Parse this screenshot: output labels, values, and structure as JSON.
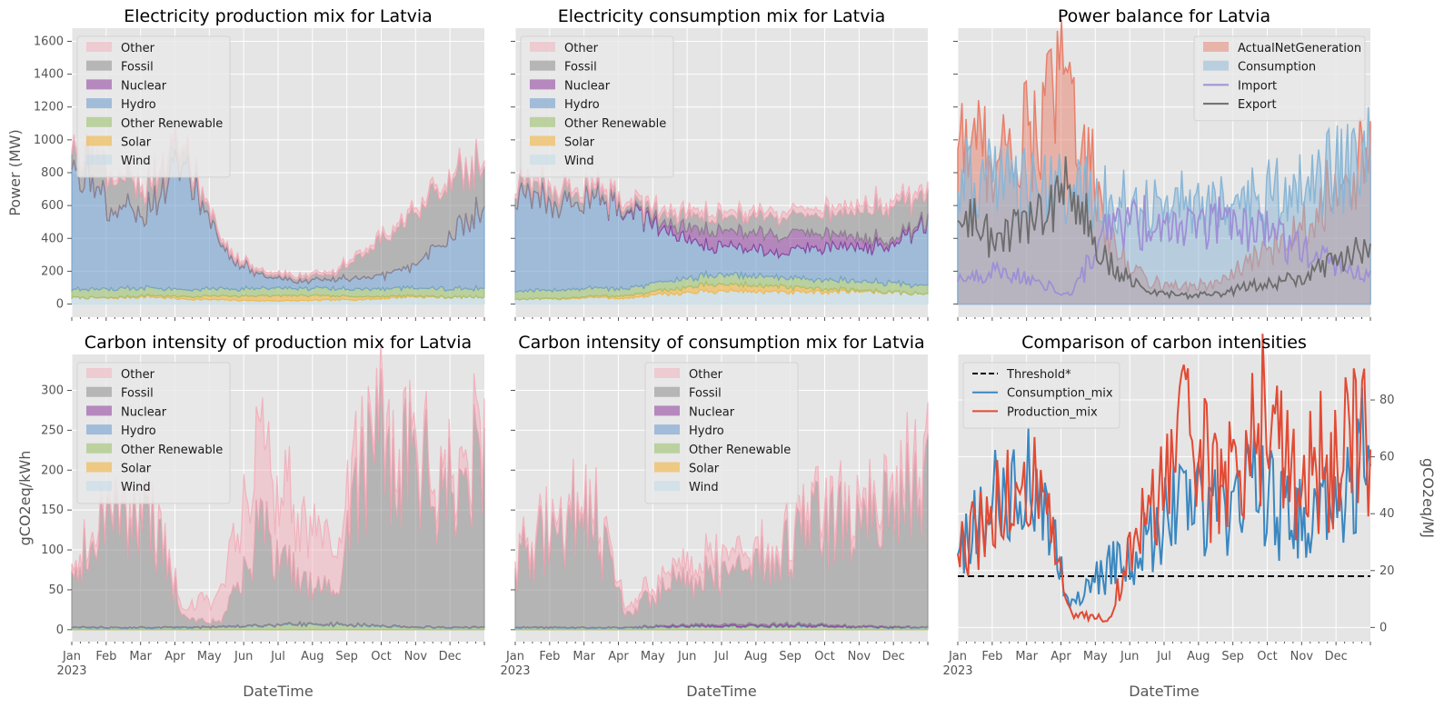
{
  "colors": {
    "Other": "#f4a9b5",
    "Fossil": "#8c8c8c",
    "Nuclear": "#8b3a9a",
    "Hydro": "#6f9fce",
    "Other Renewable": "#9dc26e",
    "Solar": "#f2b440",
    "Wind": "#c5dce8",
    "ActualNetGeneration": "#e8806c",
    "Consumption": "#8ab6d6",
    "Import": "#9f8fd6",
    "Export": "#6d6d6d",
    "Threshold*": "#000000",
    "Consumption_mix": "#3a87c0",
    "Production_mix": "#e24a33"
  },
  "xaxis": {
    "months": [
      "Jan",
      "Feb",
      "Mar",
      "Apr",
      "May",
      "Jun",
      "Jul",
      "Aug",
      "Sep",
      "Oct",
      "Nov",
      "Dec"
    ],
    "year": "2023",
    "label": "DateTime"
  },
  "chart_data": [
    {
      "type": "area",
      "title": "Electricity production mix for Latvia",
      "ylabel": "Power (MW)",
      "xlabel": "",
      "ylim": [
        -80,
        1680
      ],
      "yticks": [
        0,
        200,
        400,
        600,
        800,
        1000,
        1200,
        1400,
        1600
      ],
      "x": [
        "Jan",
        "Feb",
        "Mar",
        "Apr",
        "May",
        "Jun",
        "Jul",
        "Aug",
        "Sep",
        "Oct",
        "Nov",
        "Dec"
      ],
      "legend": "top-left",
      "stacked": true,
      "series": [
        {
          "name": "Wind",
          "values": [
            40,
            35,
            45,
            30,
            25,
            20,
            20,
            25,
            30,
            45,
            40,
            45
          ]
        },
        {
          "name": "Solar",
          "values": [
            0,
            2,
            8,
            15,
            25,
            30,
            30,
            25,
            15,
            8,
            2,
            0
          ]
        },
        {
          "name": "Other Renewable",
          "values": [
            50,
            50,
            50,
            45,
            45,
            45,
            45,
            45,
            45,
            50,
            50,
            50
          ]
        },
        {
          "name": "Hydro",
          "values": [
            820,
            500,
            470,
            780,
            230,
            80,
            40,
            60,
            70,
            110,
            300,
            500
          ]
        },
        {
          "name": "Nuclear",
          "values": [
            0,
            0,
            0,
            0,
            0,
            0,
            0,
            0,
            0,
            0,
            0,
            0
          ]
        },
        {
          "name": "Fossil",
          "values": [
            100,
            200,
            150,
            90,
            20,
            15,
            20,
            30,
            180,
            300,
            350,
            250
          ]
        },
        {
          "name": "Other",
          "values": [
            30,
            30,
            30,
            30,
            20,
            15,
            15,
            20,
            25,
            30,
            35,
            35
          ]
        }
      ]
    },
    {
      "type": "area",
      "title": "Electricity consumption mix for Latvia",
      "ylim": [
        -80,
        1680
      ],
      "x": [
        "Jan",
        "Feb",
        "Mar",
        "Apr",
        "May",
        "Jun",
        "Jul",
        "Aug",
        "Sep",
        "Oct",
        "Nov",
        "Dec"
      ],
      "legend": "top-left",
      "stacked": true,
      "series": [
        {
          "name": "Wind",
          "values": [
            30,
            30,
            40,
            35,
            60,
            75,
            80,
            70,
            70,
            80,
            70,
            60
          ]
        },
        {
          "name": "Solar",
          "values": [
            0,
            2,
            8,
            15,
            25,
            40,
            40,
            35,
            20,
            10,
            3,
            0
          ]
        },
        {
          "name": "Other Renewable",
          "values": [
            50,
            50,
            50,
            45,
            50,
            55,
            60,
            55,
            55,
            55,
            55,
            50
          ]
        },
        {
          "name": "Hydro",
          "values": [
            560,
            540,
            560,
            490,
            310,
            180,
            180,
            150,
            200,
            200,
            220,
            400
          ]
        },
        {
          "name": "Nuclear",
          "values": [
            0,
            0,
            0,
            10,
            40,
            90,
            100,
            110,
            90,
            60,
            30,
            20
          ]
        },
        {
          "name": "Fossil",
          "values": [
            60,
            70,
            50,
            30,
            50,
            80,
            90,
            110,
            110,
            150,
            200,
            150
          ]
        },
        {
          "name": "Other",
          "values": [
            30,
            30,
            30,
            30,
            30,
            35,
            35,
            35,
            40,
            40,
            40,
            40
          ]
        }
      ]
    },
    {
      "type": "area",
      "title": "Power balance for Latvia",
      "ylim": [
        -80,
        1680
      ],
      "x": [
        "Jan",
        "Feb",
        "Mar",
        "Apr",
        "May",
        "Jun",
        "Jul",
        "Aug",
        "Sep",
        "Oct",
        "Nov",
        "Dec"
      ],
      "legend": "top-right",
      "series": [
        {
          "name": "ActualNetGeneration",
          "values": [
            1050,
            900,
            1050,
            1400,
            380,
            150,
            100,
            130,
            280,
            450,
            700,
            900
          ]
        },
        {
          "name": "Consumption",
          "values": [
            760,
            750,
            740,
            700,
            620,
            600,
            610,
            580,
            640,
            700,
            820,
            900
          ]
        },
        {
          "name": "Import",
          "values": [
            150,
            200,
            150,
            50,
            450,
            500,
            520,
            500,
            450,
            350,
            250,
            150
          ]
        },
        {
          "name": "Export",
          "values": [
            550,
            400,
            500,
            700,
            250,
            80,
            50,
            60,
            120,
            150,
            250,
            350
          ]
        }
      ]
    },
    {
      "type": "area",
      "title": "Carbon intensity of production mix for Latvia",
      "ylabel": "gCO2eq/kWh",
      "xlabel": "DateTime",
      "ylim": [
        -15,
        345
      ],
      "yticks": [
        0,
        50,
        100,
        150,
        200,
        250,
        300
      ],
      "x": [
        "Jan",
        "Feb",
        "Mar",
        "Apr",
        "May",
        "Jun",
        "Jul",
        "Aug",
        "Sep",
        "Oct",
        "Nov",
        "Dec"
      ],
      "legend": "top-left",
      "stacked": true,
      "series": [
        {
          "name": "Wind",
          "values": [
            0,
            0,
            0,
            0,
            0,
            0,
            0,
            0,
            0,
            0,
            0,
            0
          ]
        },
        {
          "name": "Solar",
          "values": [
            0,
            0,
            0,
            0,
            0,
            0,
            0,
            0,
            0,
            0,
            0,
            0
          ]
        },
        {
          "name": "Other Renewable",
          "values": [
            2,
            2,
            2,
            2,
            3,
            5,
            6,
            6,
            5,
            3,
            2,
            2
          ]
        },
        {
          "name": "Hydro",
          "values": [
            1,
            1,
            1,
            1,
            1,
            1,
            1,
            1,
            1,
            1,
            1,
            1
          ]
        },
        {
          "name": "Nuclear",
          "values": [
            0,
            0,
            0,
            0,
            0,
            0,
            0,
            0,
            0,
            0,
            0,
            0
          ]
        },
        {
          "name": "Fossil",
          "values": [
            80,
            130,
            160,
            10,
            5,
            120,
            60,
            40,
            230,
            200,
            180,
            200
          ]
        },
        {
          "name": "Other",
          "values": [
            10,
            15,
            15,
            10,
            40,
            100,
            90,
            60,
            30,
            20,
            20,
            30
          ]
        }
      ]
    },
    {
      "type": "area",
      "title": "Carbon intensity of consumption mix for Latvia",
      "xlabel": "DateTime",
      "ylim": [
        -15,
        345
      ],
      "x": [
        "Jan",
        "Feb",
        "Mar",
        "Apr",
        "May",
        "Jun",
        "Jul",
        "Aug",
        "Sep",
        "Oct",
        "Nov",
        "Dec"
      ],
      "legend": "top-center",
      "stacked": true,
      "series": [
        {
          "name": "Wind",
          "values": [
            0,
            0,
            0,
            0,
            0,
            0,
            0,
            0,
            0,
            0,
            0,
            0
          ]
        },
        {
          "name": "Solar",
          "values": [
            0,
            0,
            0,
            0,
            0,
            0,
            0,
            0,
            0,
            0,
            0,
            0
          ]
        },
        {
          "name": "Other Renewable",
          "values": [
            2,
            2,
            2,
            2,
            3,
            4,
            4,
            4,
            4,
            3,
            2,
            2
          ]
        },
        {
          "name": "Hydro",
          "values": [
            1,
            1,
            1,
            1,
            1,
            1,
            1,
            1,
            1,
            1,
            1,
            1
          ]
        },
        {
          "name": "Nuclear",
          "values": [
            0,
            0,
            0,
            0,
            1,
            2,
            2,
            2,
            2,
            1,
            1,
            0
          ]
        },
        {
          "name": "Fossil",
          "values": [
            80,
            120,
            150,
            15,
            50,
            60,
            70,
            80,
            140,
            120,
            150,
            180
          ]
        },
        {
          "name": "Other",
          "values": [
            10,
            15,
            15,
            10,
            15,
            20,
            20,
            15,
            20,
            20,
            25,
            30
          ]
        }
      ]
    },
    {
      "type": "line",
      "title": "Comparison of carbon intensities",
      "ylabel": "gCO2eq/MJ",
      "xlabel": "DateTime",
      "ylim": [
        -5,
        96
      ],
      "yticks": [
        0,
        20,
        40,
        60,
        80
      ],
      "x": [
        "Jan",
        "Feb",
        "Mar",
        "Apr",
        "May",
        "Jun",
        "Jul",
        "Aug",
        "Sep",
        "Oct",
        "Nov",
        "Dec"
      ],
      "legend": "top-left",
      "series": [
        {
          "name": "Threshold*",
          "values": [
            18,
            18,
            18,
            18,
            18,
            18,
            18,
            18,
            18,
            18,
            18,
            18
          ]
        },
        {
          "name": "Consumption_mix",
          "values": [
            25,
            45,
            55,
            8,
            20,
            30,
            45,
            40,
            50,
            35,
            45,
            65
          ]
        },
        {
          "name": "Production_mix",
          "values": [
            25,
            40,
            55,
            5,
            3,
            40,
            65,
            50,
            75,
            55,
            60,
            70
          ]
        }
      ]
    }
  ]
}
